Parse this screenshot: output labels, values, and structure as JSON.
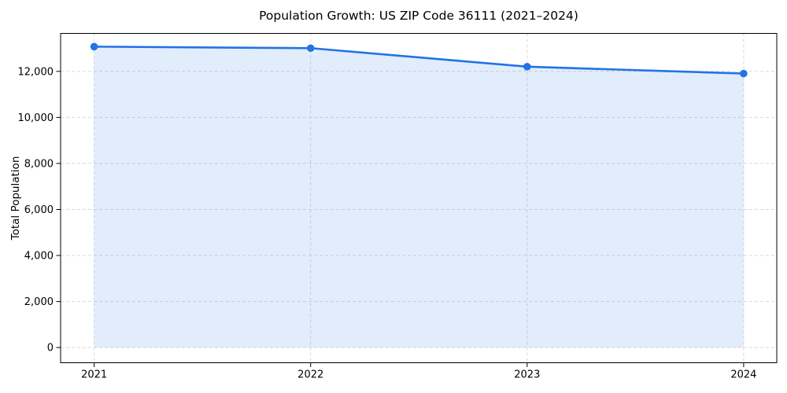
{
  "chart_data": {
    "type": "area",
    "title": "Population Growth: US ZIP Code 36111 (2021–2024)",
    "xlabel": "",
    "ylabel": "Total Population",
    "x": [
      2021,
      2022,
      2023,
      2024
    ],
    "series": [
      {
        "name": "Total Population",
        "values": [
          13075,
          13010,
          12205,
          11905
        ]
      }
    ],
    "xticks": [
      "2021",
      "2022",
      "2023",
      "2024"
    ],
    "yticks": [
      0,
      2000,
      4000,
      6000,
      8000,
      10000,
      12000
    ],
    "ytick_labels": [
      "0",
      "2,000",
      "4,000",
      "6,000",
      "8,000",
      "10,000",
      "12,000"
    ],
    "xlim": [
      2020.845,
      2024.153
    ],
    "ylim": [
      -660,
      13650
    ],
    "grid": true,
    "legend": false,
    "fill_to_zero": true,
    "style": {
      "line_color": "#2273e6",
      "marker_color": "#2273e6",
      "fill_color": "rgba(34,115,230,0.13)",
      "grid_color": "#d9d9d9",
      "axis_color": "#000000",
      "text_color": "#000000"
    }
  }
}
